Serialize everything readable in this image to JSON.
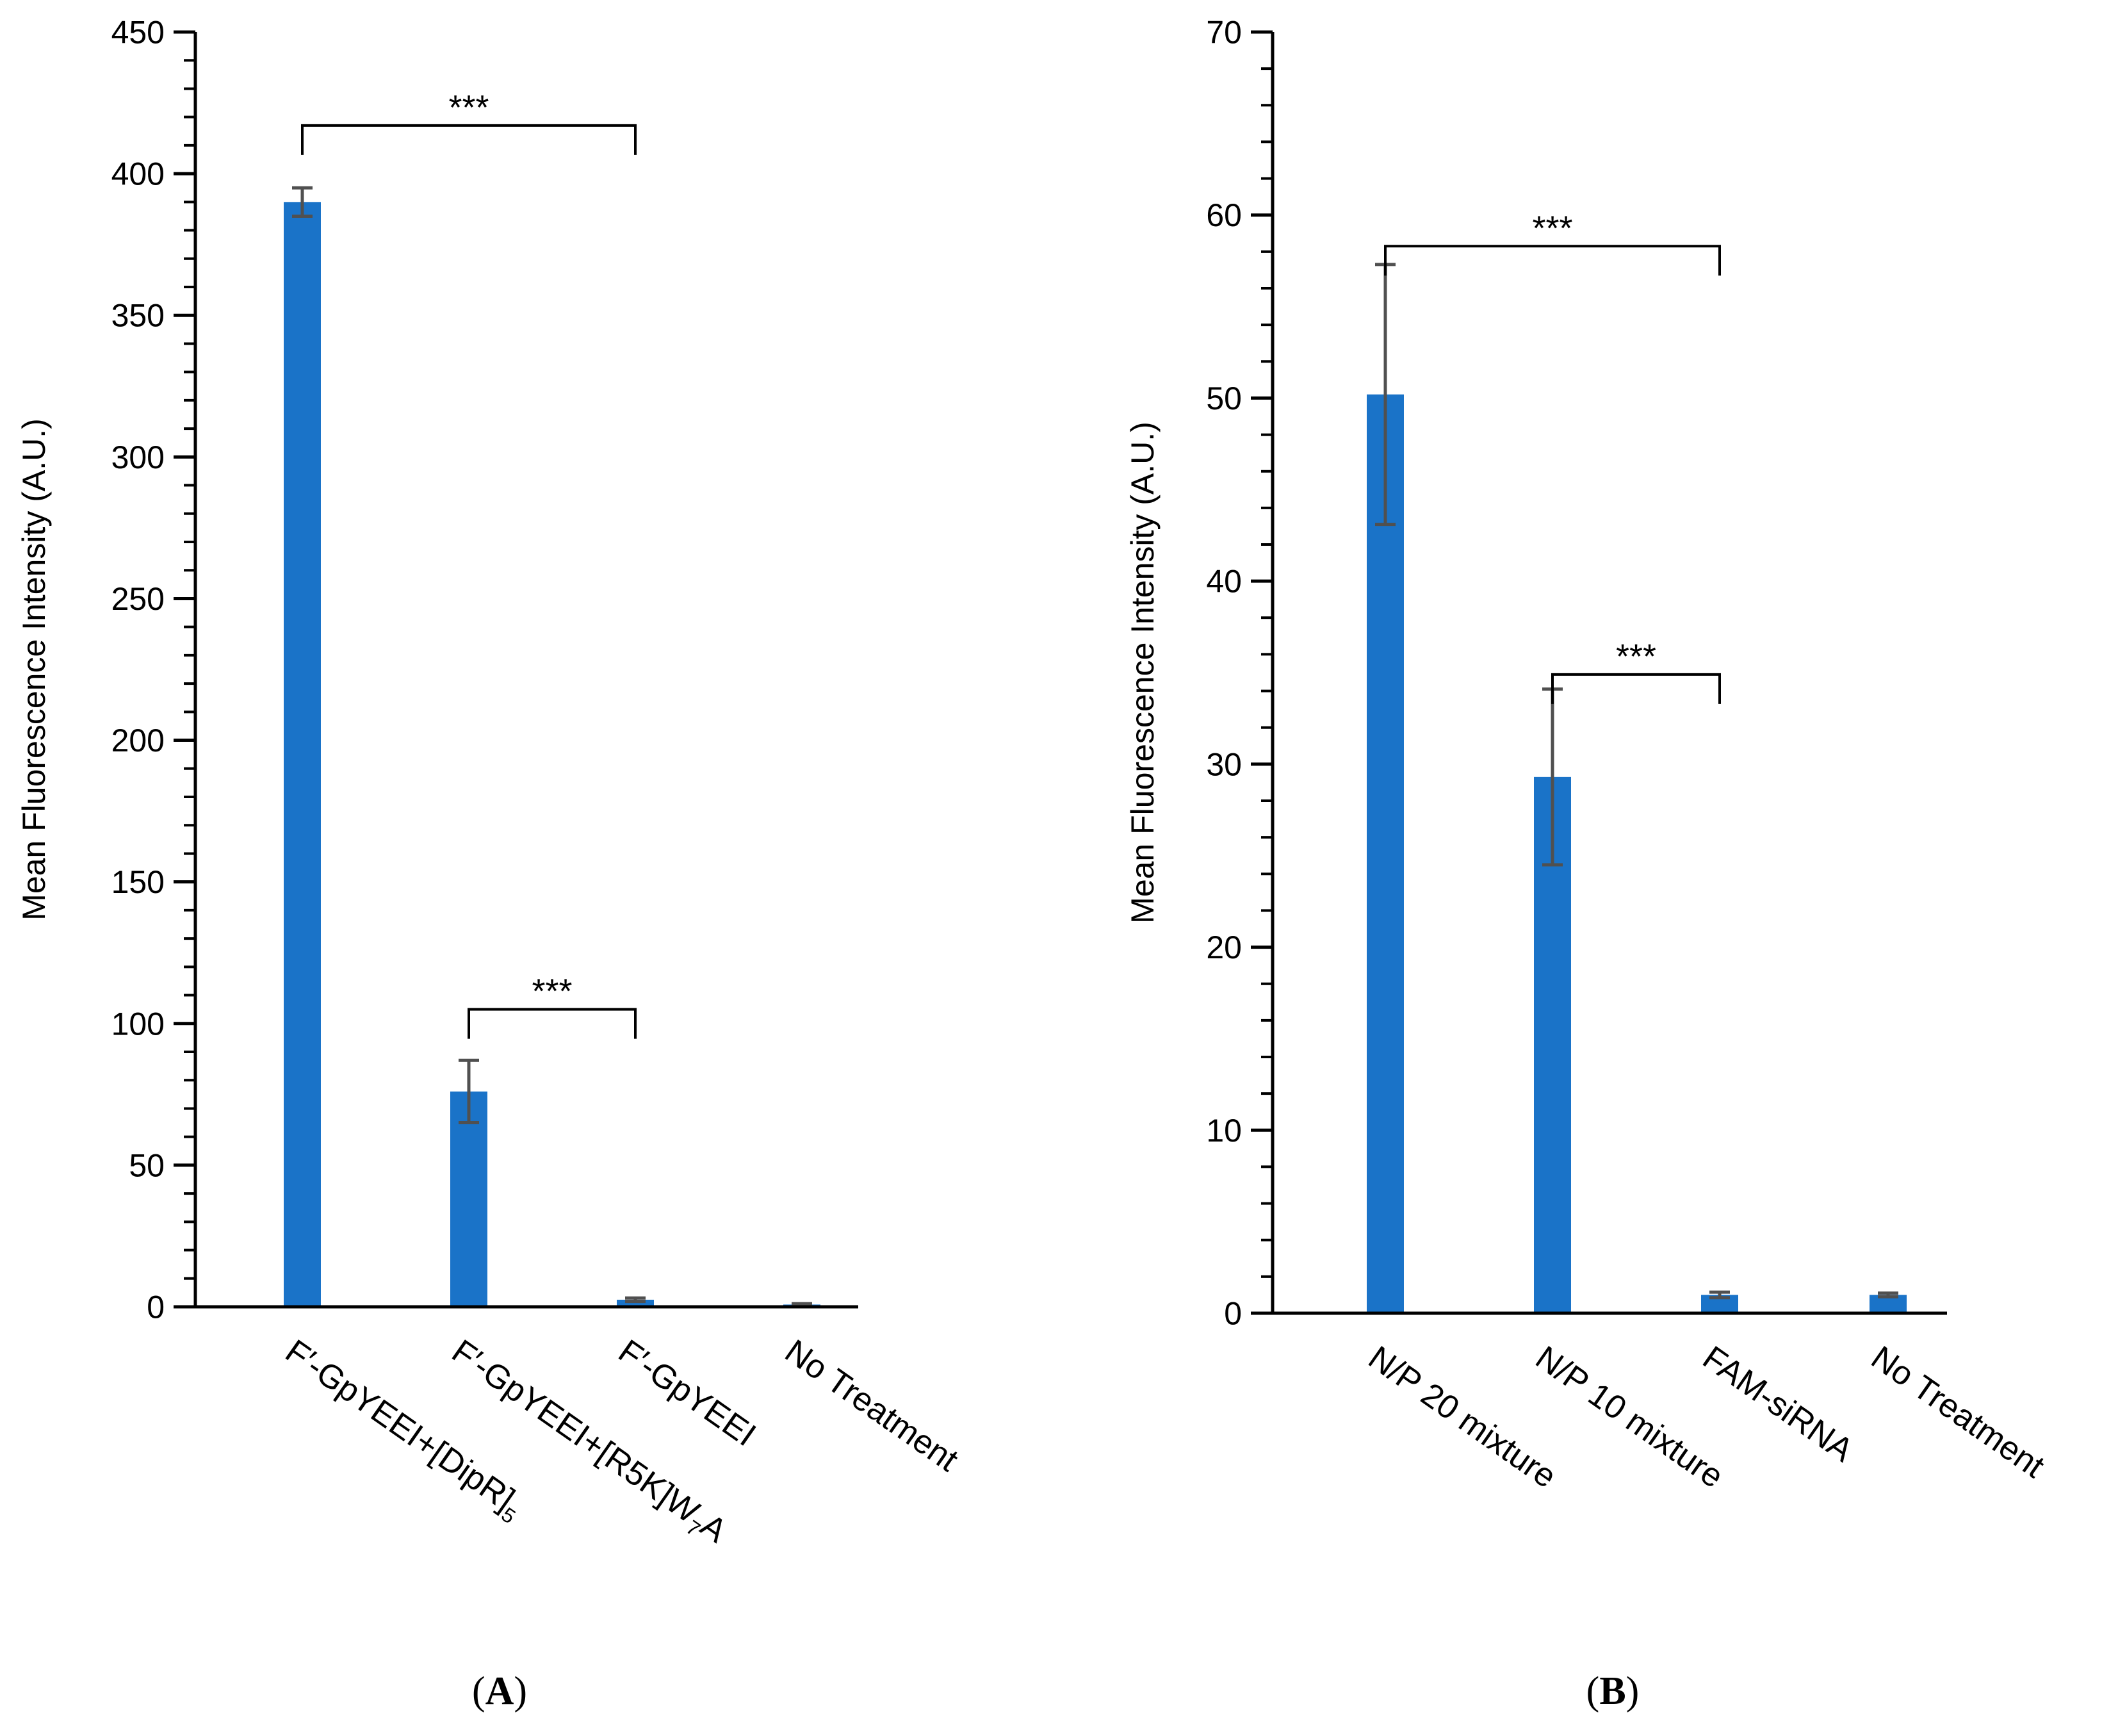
{
  "chart_data": [
    {
      "type": "bar",
      "panel": "(A)",
      "panel_letter": "A",
      "ylabel": "Mean Fluorescence Intensity (A.U.)",
      "xlabel": "",
      "ylim": [
        0,
        450
      ],
      "yticks": [
        0,
        50,
        100,
        150,
        200,
        250,
        300,
        350,
        400,
        450
      ],
      "categories": [
        {
          "main": "F′-GpYEEI+[DipR]",
          "sub": "5"
        },
        {
          "main": "F′-GpYEEI+[R5K]W",
          "sub": "7",
          "tail": "A"
        },
        {
          "main": "F′-GpYEEI",
          "sub": "",
          "tail": ""
        },
        {
          "main": "No Treatment",
          "sub": "",
          "tail": ""
        }
      ],
      "values": [
        390,
        76,
        2.5,
        0.8
      ],
      "errors": [
        5,
        11,
        0.6,
        0.3
      ],
      "bar_color": "#1a73c8",
      "significance": [
        {
          "from": 0,
          "to": 2,
          "label": "***",
          "y": 417
        },
        {
          "from": 1,
          "to": 2,
          "label": "***",
          "y": 105
        }
      ]
    },
    {
      "type": "bar",
      "panel": "(B)",
      "panel_letter": "B",
      "ylabel": "Mean Fluorescence Intensity (A.U.)",
      "xlabel": "",
      "ylim": [
        0,
        70
      ],
      "yticks": [
        0,
        10,
        20,
        30,
        40,
        50,
        60,
        70
      ],
      "categories": [
        {
          "main": "N/P 20 mixture",
          "sub": "",
          "tail": ""
        },
        {
          "main": "N/P 10 mixture",
          "sub": "",
          "tail": ""
        },
        {
          "main": "FAM-siRNA",
          "sub": "",
          "tail": ""
        },
        {
          "main": "No Treatment",
          "sub": "",
          "tail": ""
        }
      ],
      "values": [
        50.2,
        29.3,
        1.0,
        1.0
      ],
      "errors": [
        7.1,
        4.8,
        0.15,
        0.1
      ],
      "bar_color": "#1a73c8",
      "significance": [
        {
          "from": 0,
          "to": 2,
          "label": "***",
          "y": 58.3
        },
        {
          "from": 1,
          "to": 2,
          "label": "***",
          "y": 34.9
        }
      ]
    }
  ]
}
